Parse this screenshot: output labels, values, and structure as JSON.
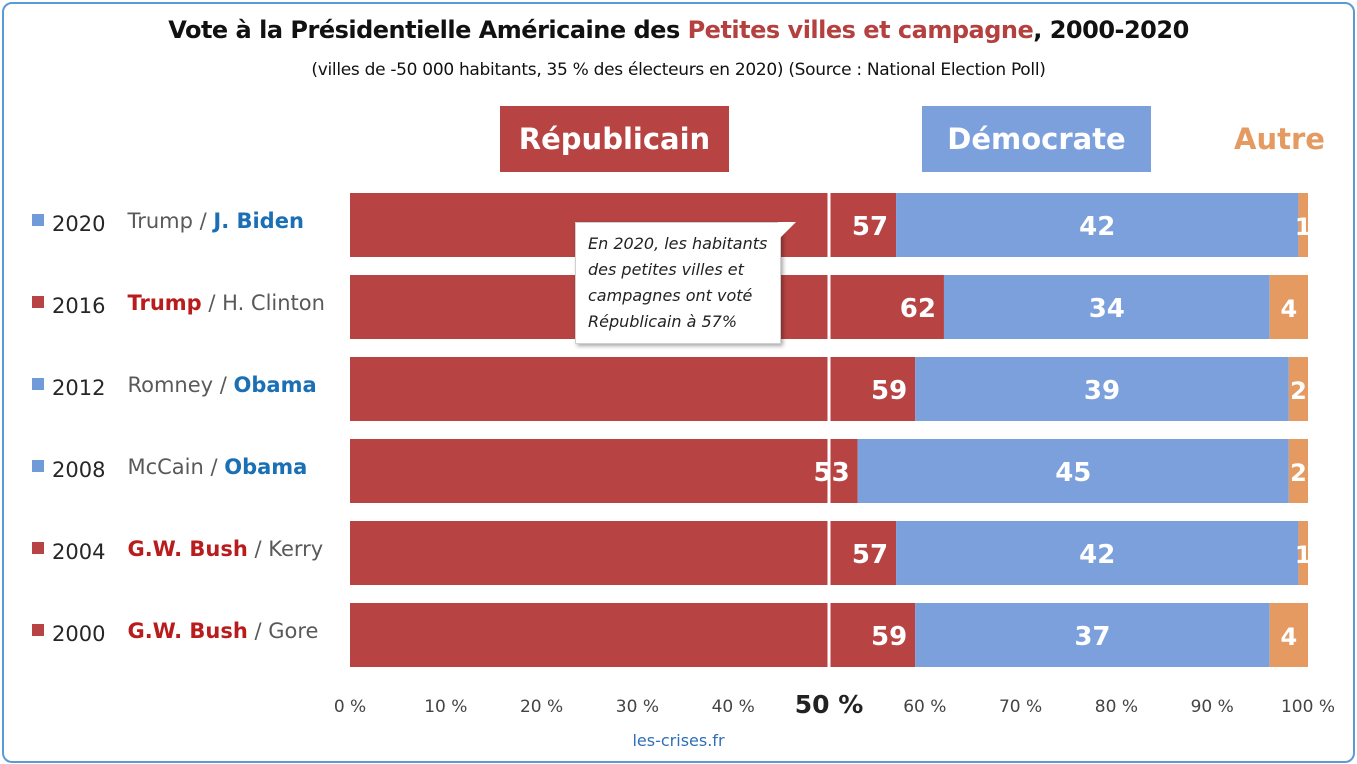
{
  "title": {
    "part1": "Vote à la Présidentielle Américaine des ",
    "highlight": "Petites villes et campagne",
    "part2": ", 2000-2020",
    "highlight_color": "#b44040"
  },
  "subtitle": "(villes de -50 000 habitants, 35 % des électeurs en 2020) (Source : National Election Poll)",
  "legend": [
    {
      "label": "Républicain",
      "color": "#b84343"
    },
    {
      "label": "Démocrate",
      "color": "#7ba0dc"
    },
    {
      "label": "Autre",
      "color": "#e49a60"
    }
  ],
  "colors": {
    "republican": "#b84343",
    "democrat": "#7ba0dc",
    "other": "#e49a60",
    "republican_text": "#b81c1c",
    "democrat_text": "#1a6fb5",
    "square_rep": "#b84343",
    "square_dem": "#6f9bd8"
  },
  "chart_data": {
    "type": "bar",
    "orientation": "horizontal",
    "stacked": true,
    "categories": [
      "2020",
      "2016",
      "2012",
      "2008",
      "2004",
      "2000"
    ],
    "candidates": [
      {
        "rep": "Trump",
        "sep": " / ",
        "dem": "J. Biden",
        "winner": "dem"
      },
      {
        "rep": "Trump",
        "sep": " / ",
        "dem": "H. Clinton",
        "winner": "rep"
      },
      {
        "rep": "Romney",
        "sep": " / ",
        "dem": "Obama",
        "winner": "dem"
      },
      {
        "rep": "McCain",
        "sep": " / ",
        "dem": "Obama",
        "winner": "dem"
      },
      {
        "rep": "G.W. Bush",
        "sep": " / ",
        "dem": "Kerry",
        "winner": "rep"
      },
      {
        "rep": "G.W. Bush",
        "sep": " / ",
        "dem": "Gore",
        "winner": "rep"
      }
    ],
    "series": [
      {
        "name": "Républicain",
        "values": [
          57,
          62,
          59,
          53,
          57,
          59
        ]
      },
      {
        "name": "Démocrate",
        "values": [
          42,
          34,
          39,
          45,
          42,
          37
        ]
      },
      {
        "name": "Autre",
        "values": [
          1,
          4,
          2,
          2,
          1,
          4
        ]
      }
    ],
    "xlim": [
      0,
      100
    ],
    "xticks": [
      "0 %",
      "10 %",
      "20 %",
      "30 %",
      "40 %",
      "50 %",
      "60 %",
      "70 %",
      "80 %",
      "90 %",
      "100 %"
    ],
    "reference_line": 50
  },
  "annotation": "En 2020, les habitants des petites villes et campagnes ont voté Républicain à 57%",
  "source": "les-crises.fr"
}
